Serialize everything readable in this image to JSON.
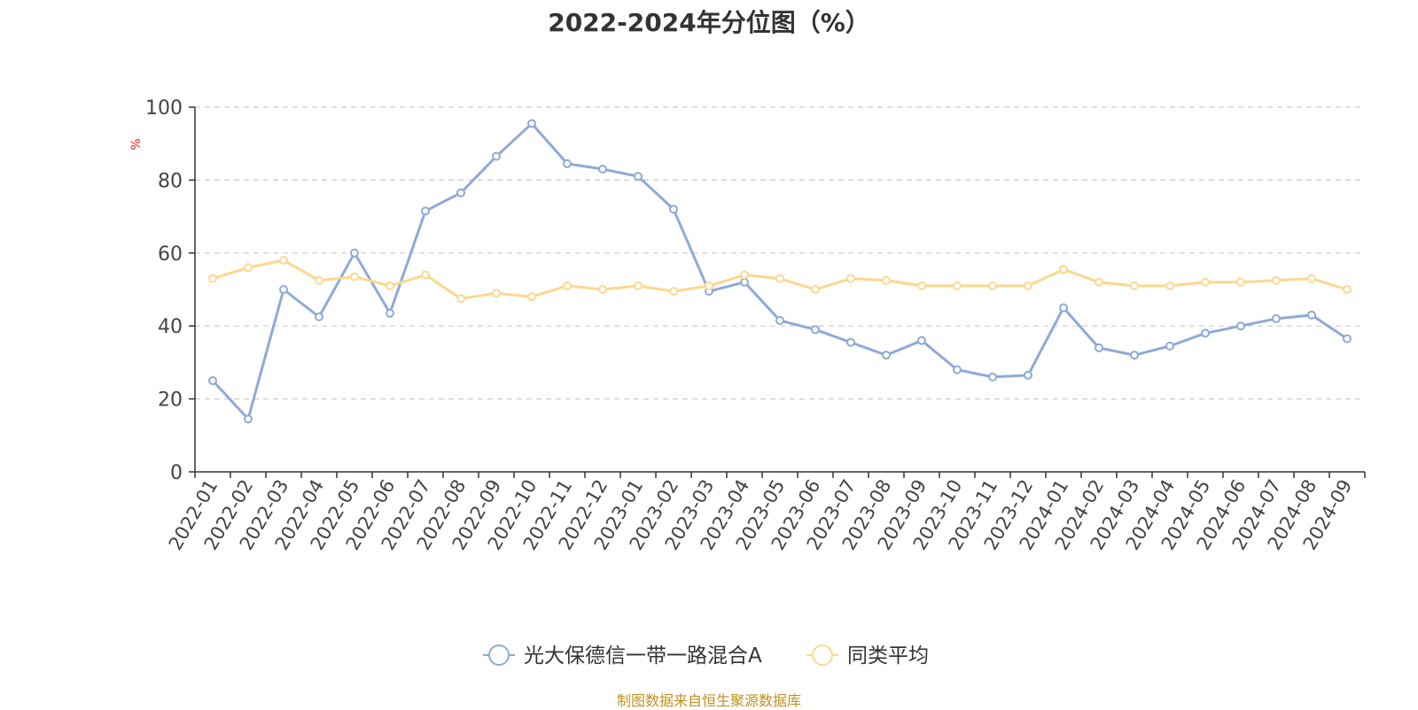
{
  "chart_data": {
    "type": "line",
    "title": "2022-2024年分位图（%）",
    "ylabel": "%",
    "xlabel": "",
    "ylim": [
      0,
      100
    ],
    "yticks": [
      0,
      20,
      40,
      60,
      80,
      100
    ],
    "grid": true,
    "legend_position": "bottom",
    "categories": [
      "2022-01",
      "2022-02",
      "2022-03",
      "2022-04",
      "2022-05",
      "2022-06",
      "2022-07",
      "2022-08",
      "2022-09",
      "2022-10",
      "2022-11",
      "2022-12",
      "2023-01",
      "2023-02",
      "2023-03",
      "2023-04",
      "2023-05",
      "2023-06",
      "2023-07",
      "2023-08",
      "2023-09",
      "2023-10",
      "2023-11",
      "2023-12",
      "2024-01",
      "2024-02",
      "2024-03",
      "2024-04",
      "2024-05",
      "2024-06",
      "2024-07",
      "2024-08",
      "2024-09"
    ],
    "series": [
      {
        "name": "光大保德信一带一路混合A",
        "color": "#8eaad8",
        "values": [
          25,
          14.5,
          50,
          42.5,
          60,
          43.5,
          71.5,
          76.5,
          86.5,
          95.5,
          84.5,
          83,
          81,
          72,
          49.5,
          52,
          41.5,
          39,
          35.5,
          32,
          36,
          28,
          26,
          26.5,
          45,
          34,
          32,
          34.5,
          38,
          40,
          42,
          43,
          36.5
        ]
      },
      {
        "name": "同类平均",
        "color": "#fcd88f",
        "values": [
          53,
          56,
          58,
          52.5,
          53.5,
          51,
          54,
          47.5,
          49,
          48,
          51,
          50,
          51,
          49.5,
          51,
          54,
          53,
          50,
          53,
          52.5,
          51,
          51,
          51,
          51,
          55.5,
          52,
          51,
          51,
          52,
          52,
          52.5,
          53,
          50
        ]
      }
    ]
  },
  "source_note": "制图数据来自恒生聚源数据库"
}
